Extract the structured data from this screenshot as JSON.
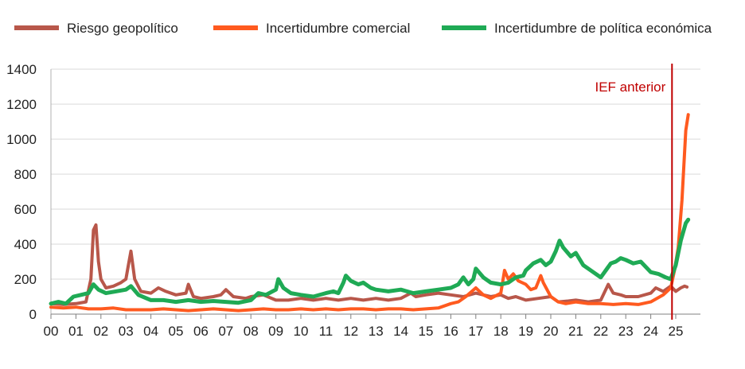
{
  "chart_data": {
    "type": "line",
    "title": "",
    "xlabel": "",
    "ylabel": "",
    "ylim": [
      0,
      1400
    ],
    "xlim": [
      2000,
      2025.6
    ],
    "yticks": [
      0,
      200,
      400,
      600,
      800,
      1000,
      1200,
      1400
    ],
    "xtick_labels": [
      "00",
      "01",
      "02",
      "03",
      "04",
      "05",
      "06",
      "07",
      "08",
      "09",
      "10",
      "11",
      "12",
      "13",
      "14",
      "15",
      "16",
      "17",
      "18",
      "19",
      "20",
      "21",
      "22",
      "23",
      "24",
      "25"
    ],
    "grid": "horizontal",
    "legend_position": "top",
    "annotation": {
      "label": "IEF anterior",
      "x": 2024.85,
      "color": "#c00000"
    },
    "series": [
      {
        "name": "Riesgo geopolítico",
        "color": "#b8574a",
        "points": [
          [
            2000.0,
            60
          ],
          [
            2000.5,
            55
          ],
          [
            2001.0,
            60
          ],
          [
            2001.4,
            70
          ],
          [
            2001.6,
            200
          ],
          [
            2001.7,
            480
          ],
          [
            2001.8,
            510
          ],
          [
            2001.9,
            300
          ],
          [
            2002.0,
            200
          ],
          [
            2002.2,
            150
          ],
          [
            2002.5,
            160
          ],
          [
            2002.8,
            180
          ],
          [
            2003.0,
            200
          ],
          [
            2003.1,
            280
          ],
          [
            2003.2,
            360
          ],
          [
            2003.35,
            200
          ],
          [
            2003.6,
            130
          ],
          [
            2004.0,
            120
          ],
          [
            2004.3,
            150
          ],
          [
            2004.6,
            130
          ],
          [
            2005.0,
            110
          ],
          [
            2005.4,
            120
          ],
          [
            2005.5,
            170
          ],
          [
            2005.7,
            100
          ],
          [
            2006.0,
            90
          ],
          [
            2006.5,
            100
          ],
          [
            2006.8,
            110
          ],
          [
            2007.0,
            140
          ],
          [
            2007.3,
            100
          ],
          [
            2007.8,
            90
          ],
          [
            2008.0,
            100
          ],
          [
            2008.5,
            110
          ],
          [
            2009.0,
            80
          ],
          [
            2009.5,
            80
          ],
          [
            2010.0,
            90
          ],
          [
            2010.5,
            80
          ],
          [
            2011.0,
            90
          ],
          [
            2011.5,
            80
          ],
          [
            2012.0,
            90
          ],
          [
            2012.5,
            80
          ],
          [
            2013.0,
            90
          ],
          [
            2013.5,
            80
          ],
          [
            2014.0,
            90
          ],
          [
            2014.4,
            120
          ],
          [
            2014.6,
            100
          ],
          [
            2015.0,
            110
          ],
          [
            2015.5,
            120
          ],
          [
            2016.0,
            110
          ],
          [
            2016.5,
            100
          ],
          [
            2017.0,
            120
          ],
          [
            2017.3,
            110
          ],
          [
            2017.6,
            100
          ],
          [
            2018.0,
            110
          ],
          [
            2018.3,
            90
          ],
          [
            2018.6,
            100
          ],
          [
            2019.0,
            80
          ],
          [
            2019.5,
            90
          ],
          [
            2020.0,
            100
          ],
          [
            2020.3,
            70
          ],
          [
            2020.7,
            75
          ],
          [
            2021.0,
            80
          ],
          [
            2021.5,
            70
          ],
          [
            2022.0,
            80
          ],
          [
            2022.3,
            170
          ],
          [
            2022.5,
            120
          ],
          [
            2022.8,
            110
          ],
          [
            2023.0,
            100
          ],
          [
            2023.5,
            100
          ],
          [
            2024.0,
            120
          ],
          [
            2024.2,
            150
          ],
          [
            2024.5,
            130
          ],
          [
            2024.8,
            160
          ],
          [
            2025.0,
            130
          ],
          [
            2025.2,
            150
          ],
          [
            2025.35,
            160
          ],
          [
            2025.45,
            155
          ]
        ]
      },
      {
        "name": "Incertidumbre comercial",
        "color": "#ff5a1f",
        "points": [
          [
            2000.0,
            40
          ],
          [
            2000.5,
            35
          ],
          [
            2001.0,
            40
          ],
          [
            2001.5,
            30
          ],
          [
            2002.0,
            30
          ],
          [
            2002.5,
            35
          ],
          [
            2003.0,
            25
          ],
          [
            2003.5,
            25
          ],
          [
            2004.0,
            25
          ],
          [
            2004.5,
            30
          ],
          [
            2005.0,
            25
          ],
          [
            2005.5,
            20
          ],
          [
            2006.0,
            25
          ],
          [
            2006.5,
            30
          ],
          [
            2007.0,
            25
          ],
          [
            2007.5,
            20
          ],
          [
            2008.0,
            25
          ],
          [
            2008.5,
            30
          ],
          [
            2009.0,
            25
          ],
          [
            2009.5,
            25
          ],
          [
            2010.0,
            30
          ],
          [
            2010.5,
            25
          ],
          [
            2011.0,
            30
          ],
          [
            2011.5,
            25
          ],
          [
            2012.0,
            30
          ],
          [
            2012.5,
            30
          ],
          [
            2013.0,
            25
          ],
          [
            2013.5,
            30
          ],
          [
            2014.0,
            30
          ],
          [
            2014.5,
            25
          ],
          [
            2015.0,
            30
          ],
          [
            2015.5,
            35
          ],
          [
            2016.0,
            60
          ],
          [
            2016.3,
            70
          ],
          [
            2016.6,
            100
          ],
          [
            2017.0,
            150
          ],
          [
            2017.3,
            110
          ],
          [
            2017.6,
            90
          ],
          [
            2018.0,
            120
          ],
          [
            2018.15,
            250
          ],
          [
            2018.3,
            200
          ],
          [
            2018.5,
            230
          ],
          [
            2018.7,
            190
          ],
          [
            2019.0,
            170
          ],
          [
            2019.2,
            140
          ],
          [
            2019.4,
            150
          ],
          [
            2019.6,
            220
          ],
          [
            2019.7,
            180
          ],
          [
            2020.0,
            100
          ],
          [
            2020.3,
            70
          ],
          [
            2020.6,
            60
          ],
          [
            2021.0,
            70
          ],
          [
            2021.5,
            60
          ],
          [
            2022.0,
            60
          ],
          [
            2022.5,
            55
          ],
          [
            2023.0,
            60
          ],
          [
            2023.5,
            55
          ],
          [
            2024.0,
            70
          ],
          [
            2024.5,
            110
          ],
          [
            2024.8,
            150
          ],
          [
            2024.95,
            250
          ],
          [
            2025.1,
            380
          ],
          [
            2025.25,
            650
          ],
          [
            2025.4,
            1050
          ],
          [
            2025.5,
            1140
          ]
        ]
      },
      {
        "name": "Incertidumbre de política económica",
        "color": "#1faa55",
        "points": [
          [
            2000.0,
            60
          ],
          [
            2000.3,
            70
          ],
          [
            2000.6,
            60
          ],
          [
            2000.9,
            100
          ],
          [
            2001.2,
            110
          ],
          [
            2001.5,
            120
          ],
          [
            2001.7,
            170
          ],
          [
            2001.9,
            140
          ],
          [
            2002.2,
            120
          ],
          [
            2002.6,
            130
          ],
          [
            2003.0,
            140
          ],
          [
            2003.2,
            160
          ],
          [
            2003.5,
            110
          ],
          [
            2004.0,
            80
          ],
          [
            2004.5,
            80
          ],
          [
            2005.0,
            70
          ],
          [
            2005.5,
            80
          ],
          [
            2006.0,
            70
          ],
          [
            2006.5,
            75
          ],
          [
            2007.0,
            70
          ],
          [
            2007.5,
            65
          ],
          [
            2008.0,
            80
          ],
          [
            2008.3,
            120
          ],
          [
            2008.6,
            110
          ],
          [
            2009.0,
            140
          ],
          [
            2009.1,
            200
          ],
          [
            2009.3,
            150
          ],
          [
            2009.6,
            120
          ],
          [
            2010.0,
            110
          ],
          [
            2010.5,
            100
          ],
          [
            2011.0,
            120
          ],
          [
            2011.3,
            130
          ],
          [
            2011.5,
            120
          ],
          [
            2011.7,
            180
          ],
          [
            2011.8,
            220
          ],
          [
            2012.0,
            190
          ],
          [
            2012.3,
            170
          ],
          [
            2012.5,
            180
          ],
          [
            2012.8,
            150
          ],
          [
            2013.0,
            140
          ],
          [
            2013.5,
            130
          ],
          [
            2014.0,
            140
          ],
          [
            2014.5,
            120
          ],
          [
            2015.0,
            130
          ],
          [
            2015.5,
            140
          ],
          [
            2016.0,
            150
          ],
          [
            2016.3,
            170
          ],
          [
            2016.5,
            210
          ],
          [
            2016.7,
            170
          ],
          [
            2016.9,
            200
          ],
          [
            2017.0,
            260
          ],
          [
            2017.3,
            210
          ],
          [
            2017.6,
            180
          ],
          [
            2018.0,
            170
          ],
          [
            2018.3,
            180
          ],
          [
            2018.6,
            210
          ],
          [
            2018.9,
            220
          ],
          [
            2019.0,
            250
          ],
          [
            2019.3,
            290
          ],
          [
            2019.6,
            310
          ],
          [
            2019.8,
            280
          ],
          [
            2020.0,
            300
          ],
          [
            2020.2,
            360
          ],
          [
            2020.35,
            420
          ],
          [
            2020.5,
            380
          ],
          [
            2020.8,
            330
          ],
          [
            2021.0,
            350
          ],
          [
            2021.3,
            280
          ],
          [
            2021.6,
            250
          ],
          [
            2022.0,
            210
          ],
          [
            2022.2,
            250
          ],
          [
            2022.4,
            290
          ],
          [
            2022.6,
            300
          ],
          [
            2022.8,
            320
          ],
          [
            2023.0,
            310
          ],
          [
            2023.3,
            290
          ],
          [
            2023.6,
            300
          ],
          [
            2024.0,
            240
          ],
          [
            2024.3,
            230
          ],
          [
            2024.6,
            210
          ],
          [
            2024.8,
            200
          ],
          [
            2025.0,
            280
          ],
          [
            2025.2,
            420
          ],
          [
            2025.4,
            520
          ],
          [
            2025.5,
            540
          ]
        ]
      }
    ]
  }
}
